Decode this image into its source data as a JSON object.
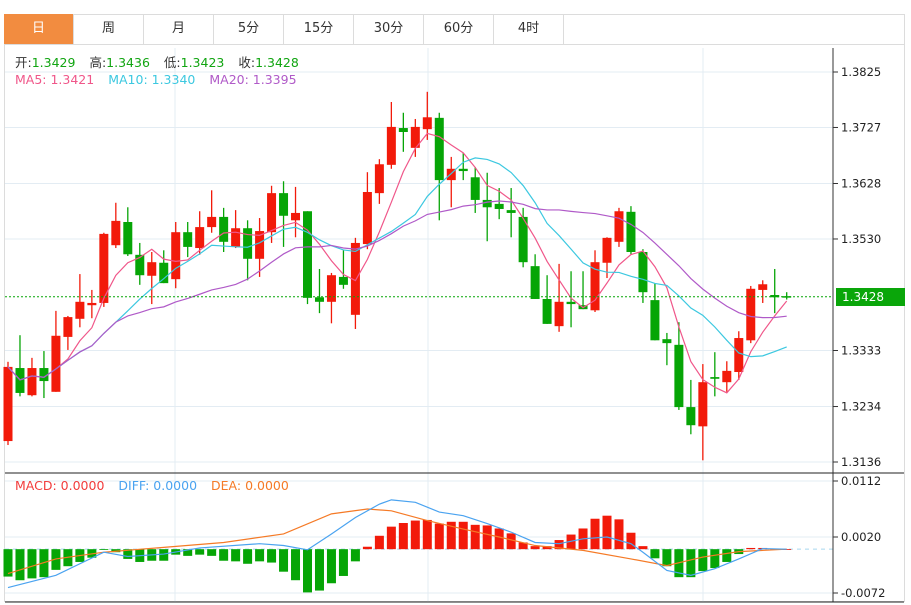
{
  "tabs": [
    {
      "label": "日",
      "active": true
    },
    {
      "label": "周"
    },
    {
      "label": "月"
    },
    {
      "label": "5分"
    },
    {
      "label": "15分"
    },
    {
      "label": "30分"
    },
    {
      "label": "60分"
    },
    {
      "label": "4时"
    }
  ],
  "ohlc_info": {
    "open_label": "开:",
    "open": "1.3429",
    "high_label": "高:",
    "high": "1.3436",
    "low_label": "低:",
    "low": "1.3423",
    "close_label": "收:",
    "close": "1.3428"
  },
  "ma_legend": {
    "ma5": "MA5: 1.3421",
    "ma10": "MA10: 1.3340",
    "ma20": "MA20: 1.3395"
  },
  "macd_legend": {
    "macd": "MACD: 0.0000",
    "diff": "DIFF: 0.0000",
    "dea": "DEA: 0.0000"
  },
  "current_price": "1.3428",
  "colors": {
    "up": "#f21a0a",
    "down": "#06a506",
    "ma5": "#f0578a",
    "ma10": "#3cc8e0",
    "ma20": "#b05ac8",
    "accent": "#f28c40",
    "diff": "#4aa3f0",
    "dea": "#f57a26",
    "macd": "#f23c3c"
  },
  "chart_data": [
    {
      "type": "candlestick",
      "price_axis": {
        "min": 1.3136,
        "max": 1.3825,
        "ticks": [
          "1.3825",
          "1.3727",
          "1.3628",
          "1.3530",
          "1.3333",
          "1.3234",
          "1.3136"
        ]
      },
      "candles_ohlc": [
        [
          1.3173,
          1.3313,
          1.3166,
          1.3304
        ],
        [
          1.3302,
          1.336,
          1.3252,
          1.3258
        ],
        [
          1.3254,
          1.332,
          1.3252,
          1.3302
        ],
        [
          1.3302,
          1.3332,
          1.3249,
          1.3279
        ],
        [
          1.326,
          1.3403,
          1.326,
          1.3359
        ],
        [
          1.3357,
          1.3394,
          1.3334,
          1.3392
        ],
        [
          1.3389,
          1.3468,
          1.3374,
          1.3419
        ],
        [
          1.3413,
          1.344,
          1.339,
          1.3417
        ],
        [
          1.3417,
          1.3541,
          1.341,
          1.3539
        ],
        [
          1.3519,
          1.3594,
          1.3514,
          1.3562
        ],
        [
          1.356,
          1.3586,
          1.35,
          1.3503
        ],
        [
          1.3502,
          1.3523,
          1.3449,
          1.3466
        ],
        [
          1.3465,
          1.3507,
          1.3415,
          1.3489
        ],
        [
          1.3488,
          1.351,
          1.3452,
          1.3452
        ],
        [
          1.3459,
          1.356,
          1.3443,
          1.3542
        ],
        [
          1.3542,
          1.356,
          1.3498,
          1.3516
        ],
        [
          1.3514,
          1.3579,
          1.3502,
          1.3551
        ],
        [
          1.3551,
          1.3616,
          1.3541,
          1.3569
        ],
        [
          1.3569,
          1.3585,
          1.3507,
          1.3525
        ],
        [
          1.3516,
          1.3581,
          1.3514,
          1.3549
        ],
        [
          1.3549,
          1.3563,
          1.3457,
          1.3495
        ],
        [
          1.3495,
          1.3567,
          1.3463,
          1.3544
        ],
        [
          1.3542,
          1.3624,
          1.3523,
          1.3611
        ],
        [
          1.3611,
          1.3632,
          1.3516,
          1.3571
        ],
        [
          1.3563,
          1.3622,
          1.3533,
          1.3576
        ],
        [
          1.3579,
          1.3579,
          1.3415,
          1.3426
        ],
        [
          1.3427,
          1.3477,
          1.3399,
          1.3419
        ],
        [
          1.3419,
          1.347,
          1.3381,
          1.3466
        ],
        [
          1.3463,
          1.351,
          1.3442,
          1.3449
        ],
        [
          1.3396,
          1.3532,
          1.3371,
          1.3523
        ],
        [
          1.3521,
          1.3648,
          1.3512,
          1.3613
        ],
        [
          1.3611,
          1.3671,
          1.3592,
          1.3662
        ],
        [
          1.3661,
          1.3772,
          1.3654,
          1.3728
        ],
        [
          1.3726,
          1.3753,
          1.3684,
          1.3719
        ],
        [
          1.3691,
          1.3742,
          1.3675,
          1.3728
        ],
        [
          1.3724,
          1.379,
          1.3705,
          1.3745
        ],
        [
          1.3744,
          1.3753,
          1.3563,
          1.3634
        ],
        [
          1.3634,
          1.3675,
          1.3586,
          1.3654
        ],
        [
          1.3654,
          1.3682,
          1.3634,
          1.365
        ],
        [
          1.3639,
          1.3657,
          1.3576,
          1.3599
        ],
        [
          1.3599,
          1.3647,
          1.3526,
          1.3586
        ],
        [
          1.3592,
          1.362,
          1.3565,
          1.3583
        ],
        [
          1.3581,
          1.362,
          1.3533,
          1.3576
        ],
        [
          1.3569,
          1.3585,
          1.348,
          1.3489
        ],
        [
          1.3482,
          1.3503,
          1.3424,
          1.3424
        ],
        [
          1.3424,
          1.3466,
          1.338,
          1.338
        ],
        [
          1.3376,
          1.3486,
          1.3366,
          1.3419
        ],
        [
          1.3419,
          1.3473,
          1.3374,
          1.3415
        ],
        [
          1.3413,
          1.3473,
          1.3406,
          1.3406
        ],
        [
          1.3404,
          1.351,
          1.3401,
          1.3489
        ],
        [
          1.3488,
          1.3533,
          1.3461,
          1.3532
        ],
        [
          1.3525,
          1.3585,
          1.3516,
          1.3579
        ],
        [
          1.3578,
          1.3588,
          1.3503,
          1.3507
        ],
        [
          1.3507,
          1.3512,
          1.3417,
          1.3436
        ],
        [
          1.3422,
          1.3452,
          1.3351,
          1.3351
        ],
        [
          1.3353,
          1.3364,
          1.3307,
          1.3346
        ],
        [
          1.3343,
          1.3383,
          1.3228,
          1.3233
        ],
        [
          1.3233,
          1.3281,
          1.3185,
          1.3201
        ],
        [
          1.3199,
          1.3309,
          1.3139,
          1.3277
        ],
        [
          1.3286,
          1.333,
          1.3252,
          1.3283
        ],
        [
          1.3277,
          1.3314,
          1.326,
          1.3297
        ],
        [
          1.3295,
          1.3367,
          1.3281,
          1.3355
        ],
        [
          1.3351,
          1.3447,
          1.3346,
          1.3442
        ],
        [
          1.344,
          1.3457,
          1.3417,
          1.345
        ],
        [
          1.3431,
          1.3477,
          1.3399,
          1.3427
        ],
        [
          1.3429,
          1.3436,
          1.3423,
          1.3428
        ]
      ],
      "moving_averages": [
        "MA5",
        "MA10",
        "MA20"
      ]
    },
    {
      "type": "bar",
      "title": "MACD",
      "axis": {
        "min": -0.0072,
        "max": 0.0112,
        "ticks": [
          "0.0112",
          "0.0020",
          "-0.0072"
        ]
      },
      "macd_histogram": [
        -0.0045,
        -0.0051,
        -0.0048,
        -0.0046,
        -0.0034,
        -0.0028,
        -0.0021,
        -0.0014,
        -0.0001,
        -0.0005,
        -0.0016,
        -0.0021,
        -0.0019,
        -0.0019,
        -0.0009,
        -0.0011,
        -0.0009,
        -0.0011,
        -0.0019,
        -0.002,
        -0.0024,
        -0.002,
        -0.0022,
        -0.0037,
        -0.0051,
        -0.0071,
        -0.0068,
        -0.0056,
        -0.0044,
        -0.002,
        0.0004,
        0.0022,
        0.0037,
        0.0043,
        0.0047,
        0.0048,
        0.0042,
        0.0045,
        0.0045,
        0.004,
        0.0039,
        0.0034,
        0.0026,
        0.0011,
        0.0005,
        0.0005,
        0.0015,
        0.0024,
        0.0034,
        0.005,
        0.0055,
        0.0049,
        0.0027,
        0.0005,
        -0.0015,
        -0.0028,
        -0.0046,
        -0.0046,
        -0.0036,
        -0.0031,
        -0.0021,
        -0.0008,
        0.0002,
        0.0002,
        0.0,
        0.0
      ],
      "diff_points": [
        [
          1,
          -0.0063
        ],
        [
          5,
          -0.0043
        ],
        [
          9,
          -0.0005
        ],
        [
          11,
          -0.0012
        ],
        [
          14,
          -0.0008
        ],
        [
          17,
          0.0002
        ],
        [
          22,
          0.0009
        ],
        [
          24,
          0.0006
        ],
        [
          26,
          -0.0001
        ],
        [
          28,
          0.0025
        ],
        [
          30,
          0.0052
        ],
        [
          32,
          0.0074
        ],
        [
          33,
          0.0081
        ],
        [
          35,
          0.0077
        ],
        [
          37,
          0.0061
        ],
        [
          39,
          0.0055
        ],
        [
          41,
          0.0042
        ],
        [
          43,
          0.0028
        ],
        [
          45,
          0.0011
        ],
        [
          47,
          0.0009
        ],
        [
          49,
          0.0017
        ],
        [
          51,
          0.002
        ],
        [
          53,
          0.0009
        ],
        [
          54,
          -0.0005
        ],
        [
          56,
          -0.0035
        ],
        [
          58,
          -0.0043
        ],
        [
          60,
          -0.0032
        ],
        [
          62,
          -0.0016
        ],
        [
          64,
          0.0001
        ],
        [
          66,
          0.0
        ]
      ],
      "dea_points": [
        [
          1,
          -0.004
        ],
        [
          5,
          -0.0016
        ],
        [
          9,
          -0.0005
        ],
        [
          14,
          0.0003
        ],
        [
          19,
          0.0011
        ],
        [
          24,
          0.0025
        ],
        [
          28,
          0.0058
        ],
        [
          31,
          0.0066
        ],
        [
          33,
          0.0063
        ],
        [
          36,
          0.0047
        ],
        [
          39,
          0.0033
        ],
        [
          42,
          0.002
        ],
        [
          45,
          0.0006
        ],
        [
          49,
          -0.0002
        ],
        [
          53,
          -0.0016
        ],
        [
          56,
          -0.0027
        ],
        [
          59,
          -0.0013
        ],
        [
          62,
          -0.0004
        ],
        [
          66,
          0.0
        ]
      ]
    }
  ]
}
